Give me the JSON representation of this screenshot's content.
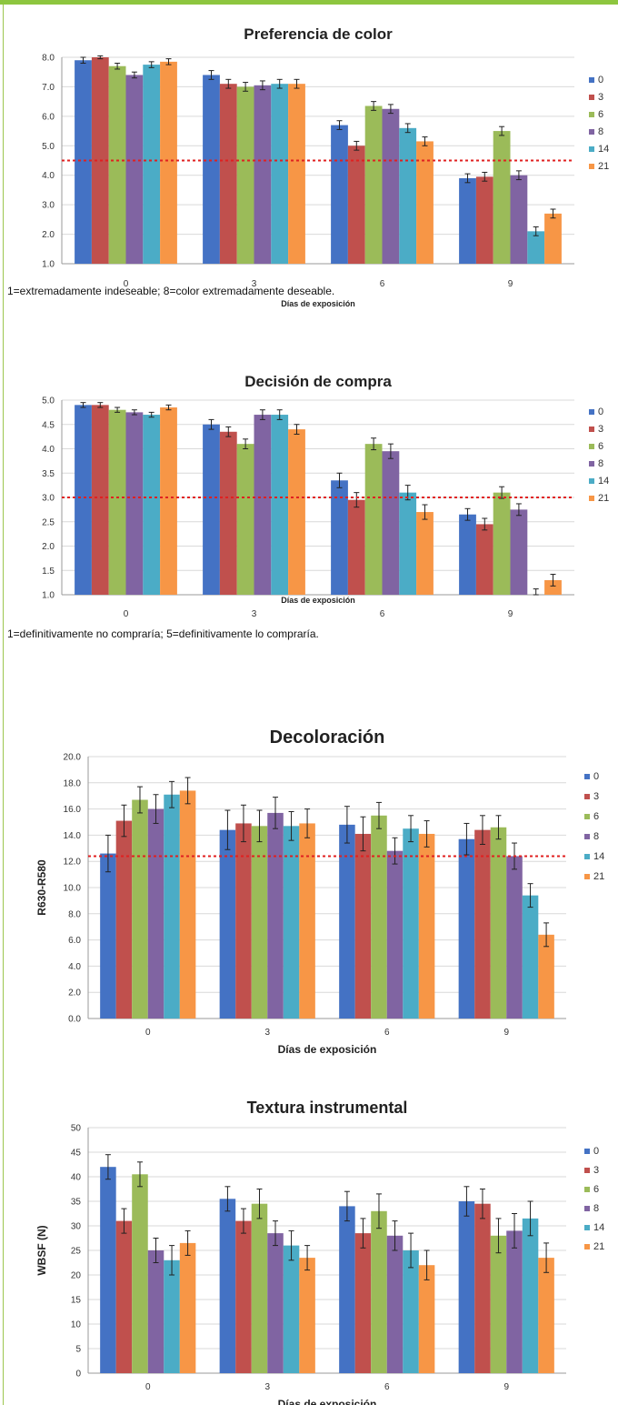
{
  "colors": {
    "top_bar": "#8dc63f",
    "series": [
      "#4472c4",
      "#c0504d",
      "#9bbb59",
      "#8064a2",
      "#4bacc6",
      "#f79646"
    ],
    "threshold": "#e02020"
  },
  "captions": [
    "1=extremadamente indeseable; 8=color extremadamente deseable.",
    "1=definitivamente no compraría; 5=definitivamente lo compraría."
  ],
  "chart_data": [
    {
      "type": "bar",
      "title": "Preferencia de color",
      "xlabel": "Días de exposición",
      "ylabel": "",
      "categories": [
        "0",
        "3",
        "6",
        "9"
      ],
      "ylim": [
        1.0,
        8.0
      ],
      "yticks": [
        "1.0",
        "2.0",
        "3.0",
        "4.0",
        "5.0",
        "6.0",
        "7.0",
        "8.0"
      ],
      "threshold": 4.5,
      "grid": true,
      "legend": "right",
      "series": [
        {
          "name": "0",
          "values": [
            7.9,
            7.4,
            5.7,
            3.9
          ],
          "errors": [
            0.1,
            0.15,
            0.15,
            0.15
          ]
        },
        {
          "name": "3",
          "values": [
            8.0,
            7.1,
            5.0,
            3.95
          ],
          "errors": [
            0.05,
            0.15,
            0.15,
            0.15
          ]
        },
        {
          "name": "6",
          "values": [
            7.7,
            7.0,
            6.35,
            5.5
          ],
          "errors": [
            0.1,
            0.15,
            0.15,
            0.15
          ]
        },
        {
          "name": "8",
          "values": [
            7.4,
            7.05,
            6.25,
            4.0
          ],
          "errors": [
            0.1,
            0.15,
            0.15,
            0.15
          ]
        },
        {
          "name": "14",
          "values": [
            7.75,
            7.1,
            5.6,
            2.1
          ],
          "errors": [
            0.1,
            0.15,
            0.15,
            0.15
          ]
        },
        {
          "name": "21",
          "values": [
            7.85,
            7.1,
            5.15,
            2.7
          ],
          "errors": [
            0.1,
            0.15,
            0.15,
            0.15
          ]
        }
      ]
    },
    {
      "type": "bar",
      "title": "Decisión de compra",
      "xlabel": "Días de exposición",
      "ylabel": "",
      "categories": [
        "0",
        "3",
        "6",
        "9"
      ],
      "ylim": [
        1.0,
        5.0
      ],
      "yticks": [
        "1.0",
        "1.5",
        "2.0",
        "2.5",
        "3.0",
        "3.5",
        "4.0",
        "4.5",
        "5.0"
      ],
      "threshold": 3.0,
      "grid": true,
      "legend": "right",
      "series": [
        {
          "name": "0",
          "values": [
            4.9,
            4.5,
            3.35,
            2.65
          ],
          "errors": [
            0.05,
            0.1,
            0.15,
            0.12
          ]
        },
        {
          "name": "3",
          "values": [
            4.9,
            4.35,
            2.95,
            2.45
          ],
          "errors": [
            0.05,
            0.1,
            0.15,
            0.12
          ]
        },
        {
          "name": "6",
          "values": [
            4.8,
            4.1,
            4.1,
            3.1
          ],
          "errors": [
            0.05,
            0.1,
            0.12,
            0.12
          ]
        },
        {
          "name": "8",
          "values": [
            4.75,
            4.7,
            3.95,
            2.75
          ],
          "errors": [
            0.05,
            0.1,
            0.15,
            0.12
          ]
        },
        {
          "name": "14",
          "values": [
            4.7,
            4.7,
            3.1,
            1.0
          ],
          "errors": [
            0.05,
            0.1,
            0.15,
            0.12
          ]
        },
        {
          "name": "21",
          "values": [
            4.85,
            4.4,
            2.7,
            1.3
          ],
          "errors": [
            0.05,
            0.1,
            0.15,
            0.12
          ]
        }
      ]
    },
    {
      "type": "bar",
      "title": "Decoloración",
      "xlabel": "Días de exposición",
      "ylabel": "R630-R580",
      "categories": [
        "0",
        "3",
        "6",
        "9"
      ],
      "ylim": [
        0.0,
        20.0
      ],
      "yticks": [
        "0.0",
        "2.0",
        "4.0",
        "6.0",
        "8.0",
        "10.0",
        "12.0",
        "14.0",
        "16.0",
        "18.0",
        "20.0"
      ],
      "threshold": 12.4,
      "grid": true,
      "legend": "right",
      "series": [
        {
          "name": "0",
          "values": [
            12.6,
            14.4,
            14.8,
            13.7
          ],
          "errors": [
            1.4,
            1.5,
            1.4,
            1.2
          ]
        },
        {
          "name": "3",
          "values": [
            15.1,
            14.9,
            14.1,
            14.4
          ],
          "errors": [
            1.2,
            1.4,
            1.3,
            1.1
          ]
        },
        {
          "name": "6",
          "values": [
            16.7,
            14.7,
            15.5,
            14.6
          ],
          "errors": [
            1.0,
            1.2,
            1.0,
            0.9
          ]
        },
        {
          "name": "8",
          "values": [
            16.0,
            15.7,
            12.8,
            12.4
          ],
          "errors": [
            1.1,
            1.2,
            1.0,
            1.0
          ]
        },
        {
          "name": "14",
          "values": [
            17.1,
            14.7,
            14.5,
            9.4
          ],
          "errors": [
            1.0,
            1.1,
            1.0,
            0.9
          ]
        },
        {
          "name": "21",
          "values": [
            17.4,
            14.9,
            14.1,
            6.4
          ],
          "errors": [
            1.0,
            1.1,
            1.0,
            0.9
          ]
        }
      ]
    },
    {
      "type": "bar",
      "title": "Textura instrumental",
      "xlabel": "Días de exposición",
      "ylabel": "WBSF (N)",
      "categories": [
        "0",
        "3",
        "6",
        "9"
      ],
      "ylim": [
        0,
        50
      ],
      "yticks": [
        "0",
        "5",
        "10",
        "15",
        "20",
        "25",
        "30",
        "35",
        "40",
        "45",
        "50"
      ],
      "grid": true,
      "legend": "right",
      "series": [
        {
          "name": "0",
          "values": [
            42,
            35.5,
            34,
            35
          ],
          "errors": [
            2.5,
            2.5,
            3.0,
            3.0
          ]
        },
        {
          "name": "3",
          "values": [
            31,
            31,
            28.5,
            34.5
          ],
          "errors": [
            2.5,
            2.5,
            3.0,
            3.0
          ]
        },
        {
          "name": "6",
          "values": [
            40.5,
            34.5,
            33,
            28
          ],
          "errors": [
            2.5,
            3.0,
            3.5,
            3.5
          ]
        },
        {
          "name": "8",
          "values": [
            25,
            28.5,
            28,
            29
          ],
          "errors": [
            2.5,
            2.5,
            3.0,
            3.5
          ]
        },
        {
          "name": "14",
          "values": [
            23,
            26,
            25,
            31.5
          ],
          "errors": [
            3.0,
            3.0,
            3.5,
            3.5
          ]
        },
        {
          "name": "21",
          "values": [
            26.5,
            23.5,
            22,
            23.5
          ],
          "errors": [
            2.5,
            2.5,
            3.0,
            3.0
          ]
        }
      ]
    }
  ]
}
